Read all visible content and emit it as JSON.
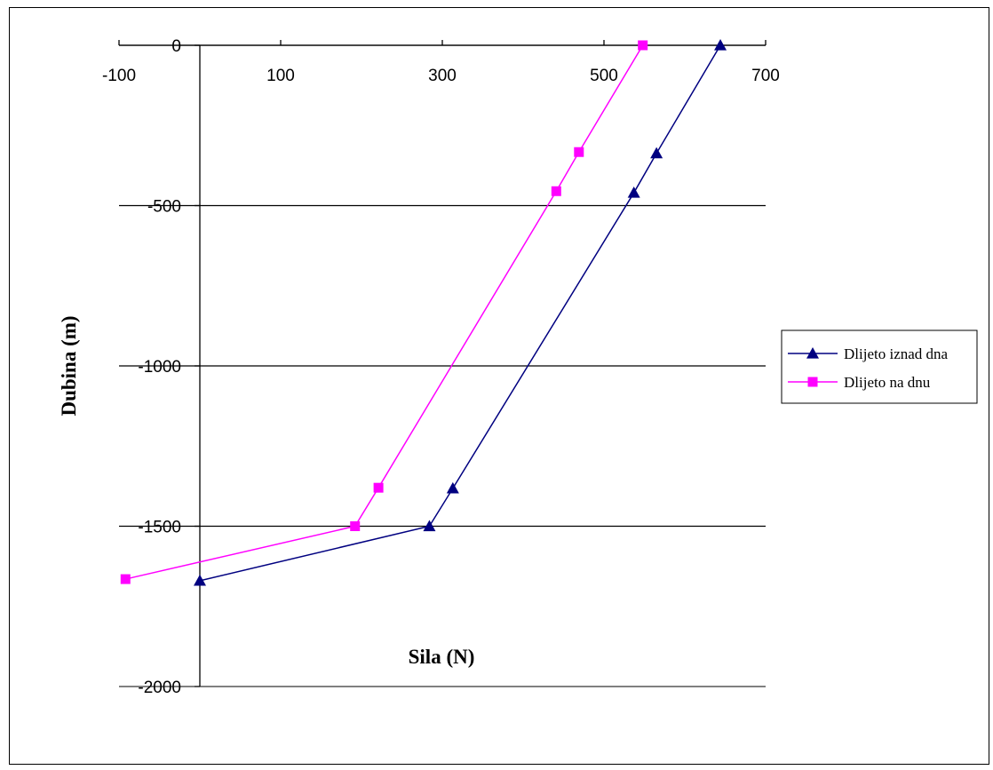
{
  "chart_data": {
    "type": "line",
    "title": "",
    "xlabel": "Sila (N)",
    "ylabel": "Dubina (m)",
    "xlim": [
      -100,
      700
    ],
    "ylim": [
      -2000,
      0
    ],
    "x_ticks": [
      -100,
      100,
      300,
      500,
      700
    ],
    "y_ticks": [
      0,
      -500,
      -1000,
      -1500,
      -2000
    ],
    "x_tick_labels": [
      "-100",
      "100",
      "300",
      "500",
      "700"
    ],
    "y_tick_labels": [
      "0",
      "-500",
      "-1000",
      "-1500",
      "-2000"
    ],
    "grid": "horizontal",
    "legend_position": "right",
    "series": [
      {
        "name": "Dlijeto iznad dna",
        "color": "#000080",
        "marker": "triangle",
        "points": [
          {
            "x": 644,
            "y": 0
          },
          {
            "x": 565,
            "y": -337
          },
          {
            "x": 537,
            "y": -460
          },
          {
            "x": 313,
            "y": -1382
          },
          {
            "x": 284,
            "y": -1500
          },
          {
            "x": 0,
            "y": -1670
          }
        ]
      },
      {
        "name": "Dlijeto na dnu",
        "color": "#ff00ff",
        "marker": "square",
        "points": [
          {
            "x": 548,
            "y": 0
          },
          {
            "x": 469,
            "y": -333
          },
          {
            "x": 441,
            "y": -455
          },
          {
            "x": 221,
            "y": -1380
          },
          {
            "x": 192,
            "y": -1500
          },
          {
            "x": -92,
            "y": -1665
          }
        ]
      }
    ]
  }
}
